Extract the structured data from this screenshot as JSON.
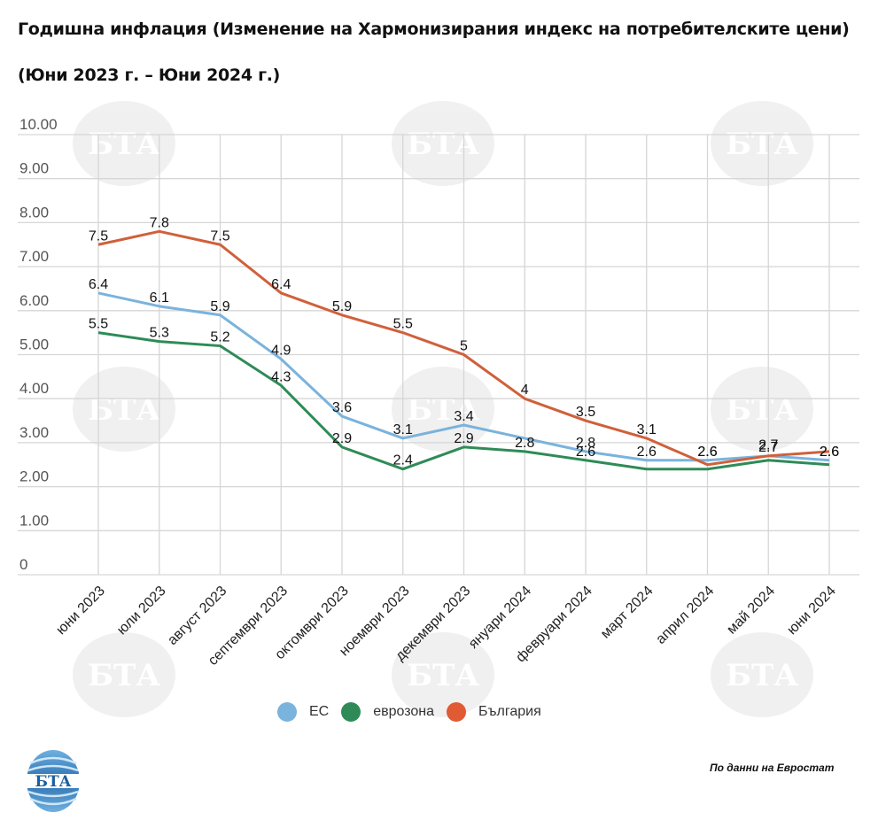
{
  "header": {
    "title_line1": "Годишна инфлация (Изменение на Хармонизирания индекс на потребителските цени)",
    "title_line2": "(Юни 2023 г. – Юни 2024 г.)"
  },
  "footer": {
    "source": "По данни на Евростат",
    "logo_text": "БТА",
    "watermark_text": "БТА"
  },
  "chart_data": {
    "type": "line",
    "title": "Годишна инфлация (Изменение на Хармонизирания индекс на потребителските цени) (Юни 2023 г. – Юни 2024 г.)",
    "xlabel": "",
    "ylabel": "",
    "ylim": [
      0,
      10
    ],
    "yticks": [
      "0",
      "1.00",
      "2.00",
      "3.00",
      "4.00",
      "5.00",
      "6.00",
      "7.00",
      "8.00",
      "9.00",
      "10.00"
    ],
    "ytick_values": [
      0,
      1,
      2,
      3,
      4,
      5,
      6,
      7,
      8,
      9,
      10
    ],
    "grid": true,
    "legend_position": "bottom-center",
    "categories": [
      "юни 2023",
      "юли 2023",
      "август 2023",
      "септември 2023",
      "октомври 2023",
      "ноември 2023",
      "декември 2023",
      "януари 2024",
      "февруари 2024",
      "март 2024",
      "април 2024",
      "май 2024",
      "юни 2024"
    ],
    "series": [
      {
        "name": "ЕС",
        "color": "#7ab3dc",
        "values": [
          6.4,
          6.1,
          5.9,
          4.9,
          3.6,
          3.1,
          3.4,
          3.1,
          2.8,
          2.6,
          2.6,
          2.7,
          2.6
        ],
        "labels": [
          "6.4",
          "6.1",
          "5.9",
          "4.9",
          "3.6",
          "3.1",
          "3.4",
          null,
          "2.8",
          "2.6",
          "2.6",
          "2.7",
          "2.6"
        ]
      },
      {
        "name": "еврозона",
        "color": "#2e8b57",
        "values": [
          5.5,
          5.3,
          5.2,
          4.3,
          2.9,
          2.4,
          2.9,
          2.8,
          2.6,
          2.4,
          2.4,
          2.6,
          2.5
        ],
        "labels": [
          "5.5",
          "5.3",
          "5.2",
          "4.3",
          "2.9",
          "2.4",
          "2.9",
          "2.8",
          "2.6",
          null,
          null,
          null,
          null
        ]
      },
      {
        "name": "България",
        "color": "#d0603a",
        "values": [
          7.5,
          7.8,
          7.5,
          6.4,
          5.9,
          5.5,
          5.0,
          4.0,
          3.5,
          3.1,
          2.5,
          2.7,
          2.8
        ],
        "labels": [
          "7.5",
          "7.8",
          "7.5",
          "6.4",
          "5.9",
          "5.5",
          "5",
          "4",
          "3.5",
          "3.1",
          null,
          null,
          null
        ]
      }
    ]
  }
}
